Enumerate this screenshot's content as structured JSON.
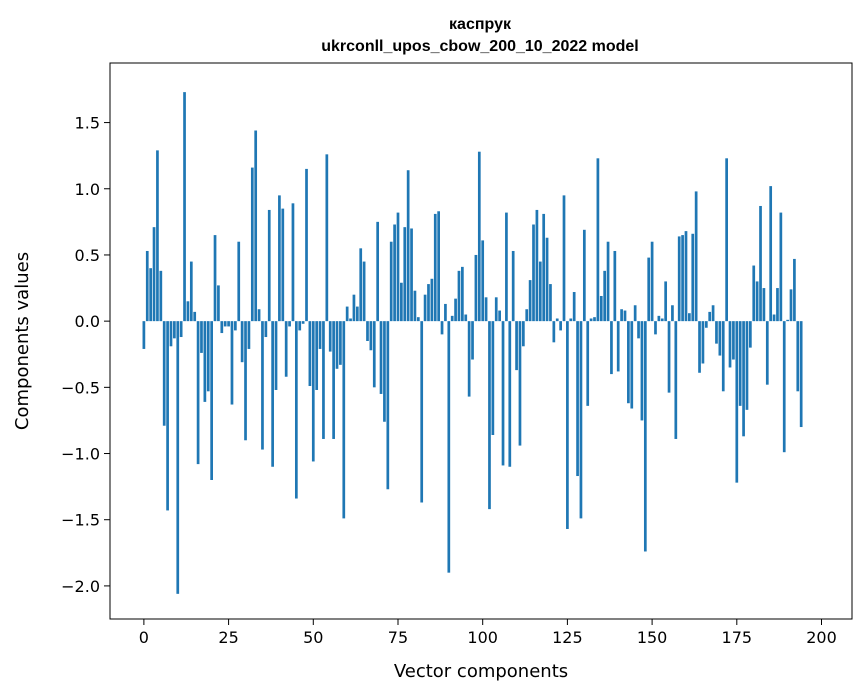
{
  "chart_data": {
    "type": "bar",
    "title_line1": "каспрук",
    "title_line2": "ukrconll_upos_cbow_200_10_2022 model",
    "xlabel": "Vector components",
    "ylabel": "Components values",
    "xlim": [
      -10,
      209
    ],
    "ylim": [
      -2.25,
      1.95
    ],
    "xticks": [
      0,
      25,
      50,
      75,
      100,
      125,
      150,
      175,
      200
    ],
    "xtick_labels": [
      "0",
      "25",
      "50",
      "75",
      "100",
      "125",
      "150",
      "175",
      "200"
    ],
    "yticks": [
      -2.0,
      -1.5,
      -1.0,
      -0.5,
      0.0,
      0.5,
      1.0,
      1.5
    ],
    "ytick_labels": [
      "−2.0",
      "−1.5",
      "−1.0",
      "−0.5",
      "0.0",
      "0.5",
      "1.0",
      "1.5"
    ],
    "bar_color": "#1f77b4",
    "grid": false,
    "values": [
      -0.21,
      0.53,
      0.4,
      0.71,
      1.29,
      0.38,
      -0.79,
      -1.43,
      -0.19,
      -0.13,
      -2.06,
      -0.12,
      1.73,
      0.15,
      0.45,
      0.07,
      -1.08,
      -0.24,
      -0.61,
      -0.53,
      -1.2,
      0.65,
      0.27,
      -0.09,
      -0.04,
      -0.04,
      -0.63,
      -0.07,
      0.6,
      -0.31,
      -0.9,
      -0.21,
      1.16,
      1.44,
      0.09,
      -0.97,
      -0.12,
      0.84,
      -1.1,
      -0.52,
      0.95,
      0.85,
      -0.42,
      -0.04,
      0.89,
      -1.34,
      -0.07,
      -0.02,
      1.15,
      -0.49,
      -1.06,
      -0.52,
      -0.21,
      -0.89,
      1.26,
      -0.23,
      -0.89,
      -0.36,
      -0.33,
      -1.49,
      0.11,
      0.02,
      0.2,
      0.11,
      0.55,
      0.45,
      -0.15,
      -0.22,
      -0.5,
      0.75,
      -0.55,
      -0.76,
      -1.27,
      0.6,
      0.73,
      0.82,
      0.29,
      0.71,
      1.14,
      0.7,
      0.23,
      0.03,
      -1.37,
      0.2,
      0.28,
      0.32,
      0.81,
      0.83,
      -0.1,
      0.13,
      -1.9,
      0.04,
      0.17,
      0.38,
      0.41,
      0.05,
      -0.57,
      -0.29,
      0.5,
      1.28,
      0.61,
      0.18,
      -1.42,
      -0.86,
      0.18,
      0.08,
      -1.09,
      0.82,
      -1.1,
      0.53,
      -0.37,
      -0.94,
      -0.19,
      0.09,
      0.31,
      0.73,
      0.84,
      0.45,
      0.81,
      0.63,
      0.28,
      -0.16,
      0.02,
      -0.07,
      0.95,
      -1.57,
      0.02,
      0.22,
      -1.17,
      -1.49,
      0.69,
      -0.64,
      0.02,
      0.03,
      1.23,
      0.19,
      0.38,
      0.6,
      -0.4,
      0.53,
      -0.38,
      0.09,
      0.08,
      -0.62,
      -0.66,
      0.12,
      -0.13,
      -0.75,
      -1.74,
      0.48,
      0.6,
      -0.1,
      0.04,
      0.02,
      0.3,
      -0.54,
      0.12,
      -0.89,
      0.64,
      0.65,
      0.68,
      0.06,
      0.66,
      0.98,
      -0.39,
      -0.32,
      -0.05,
      0.07,
      0.12,
      -0.17,
      -0.26,
      -0.53,
      1.23,
      -0.35,
      -0.29,
      -1.22,
      -0.64,
      -0.87,
      -0.67,
      -0.2,
      0.42,
      0.3,
      0.87,
      0.25,
      -0.48,
      1.02,
      0.05,
      0.25,
      0.82,
      -0.99,
      0.01,
      0.24,
      0.47,
      -0.53,
      -0.8
    ]
  }
}
